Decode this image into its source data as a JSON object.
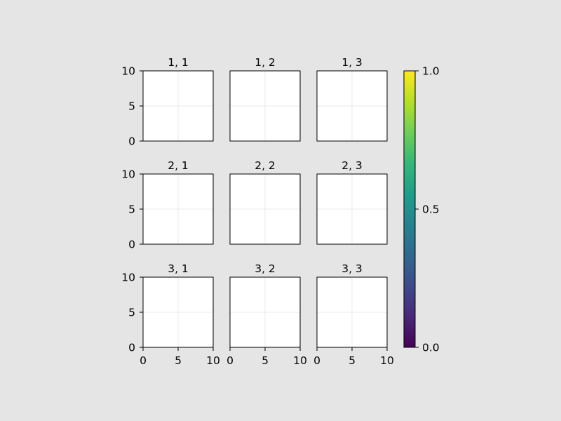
{
  "chart_data": {
    "type": "grid-of-empty-axes",
    "background_color": "#e5e5e5",
    "axes_face_color": "#ffffff",
    "grid": true,
    "grid_color": "#ebebeb",
    "xlim": [
      0,
      10
    ],
    "ylim": [
      0,
      10
    ],
    "x_ticks": [
      "0",
      "5",
      "10"
    ],
    "y_ticks": [
      "0",
      "5",
      "10"
    ],
    "x_tick_values": [
      0,
      5,
      10
    ],
    "y_tick_values": [
      0,
      5,
      10
    ],
    "subplot_titles": [
      [
        "1, 1",
        "1, 2",
        "1, 3"
      ],
      [
        "2, 1",
        "2, 2",
        "2, 3"
      ],
      [
        "3, 1",
        "3, 2",
        "3, 3"
      ]
    ],
    "colorbar": {
      "colormap": "viridis",
      "range": [
        0,
        1
      ],
      "tick_values": [
        0,
        0.5,
        1
      ],
      "tick_labels": [
        "0.0",
        "0.5",
        "1.0"
      ],
      "colors": [
        "#440154",
        "#482878",
        "#3e4a89",
        "#31688e",
        "#26828e",
        "#1f9e89",
        "#35b779",
        "#6ece58",
        "#b5de2b",
        "#fde725"
      ]
    }
  }
}
